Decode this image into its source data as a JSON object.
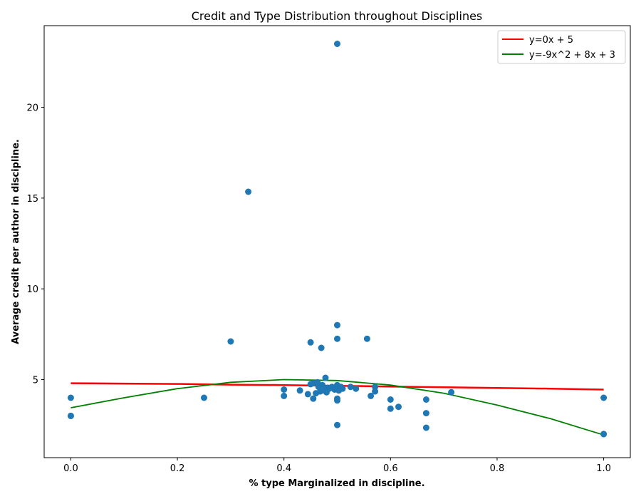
{
  "chart_data": {
    "type": "scatter",
    "title": "Credit and Type Distribution throughout Disciplines",
    "xlabel": "% type Marginalized in discipline.",
    "ylabel": "Average credit per author in discipline.",
    "xlim": [
      -0.05,
      1.05
    ],
    "ylim": [
      0.7,
      24.5
    ],
    "xticks": [
      0.0,
      0.2,
      0.4,
      0.6,
      0.8,
      1.0
    ],
    "xtick_labels": [
      "0.0",
      "0.2",
      "0.4",
      "0.6",
      "0.8",
      "1.0"
    ],
    "yticks": [
      5,
      10,
      15,
      20
    ],
    "ytick_labels": [
      "5",
      "10",
      "15",
      "20"
    ],
    "grid": false,
    "legend_position": "top-right",
    "colors": {
      "points": "#1f77b4",
      "fit_linear": "#ff0000",
      "fit_quadratic": "#008000"
    },
    "points": [
      [
        0.0,
        3.0
      ],
      [
        0.0,
        3.0
      ],
      [
        0.0,
        4.0
      ],
      [
        0.25,
        4.0
      ],
      [
        0.3,
        7.1
      ],
      [
        0.333,
        15.35
      ],
      [
        0.4,
        4.45
      ],
      [
        0.4,
        4.1
      ],
      [
        0.43,
        4.4
      ],
      [
        0.445,
        4.2
      ],
      [
        0.45,
        4.75
      ],
      [
        0.45,
        7.05
      ],
      [
        0.455,
        3.95
      ],
      [
        0.455,
        4.8
      ],
      [
        0.46,
        4.25
      ],
      [
        0.463,
        4.85
      ],
      [
        0.465,
        4.6
      ],
      [
        0.468,
        4.35
      ],
      [
        0.47,
        6.75
      ],
      [
        0.472,
        4.7
      ],
      [
        0.475,
        4.4
      ],
      [
        0.478,
        5.1
      ],
      [
        0.48,
        4.3
      ],
      [
        0.482,
        4.55
      ],
      [
        0.485,
        4.5
      ],
      [
        0.49,
        4.6
      ],
      [
        0.495,
        4.45
      ],
      [
        0.5,
        4.7
      ],
      [
        0.5,
        23.5
      ],
      [
        0.5,
        8.0
      ],
      [
        0.5,
        7.25
      ],
      [
        0.5,
        3.95
      ],
      [
        0.5,
        3.85
      ],
      [
        0.5,
        2.5
      ],
      [
        0.503,
        4.4
      ],
      [
        0.507,
        4.6
      ],
      [
        0.51,
        4.5
      ],
      [
        0.525,
        4.6
      ],
      [
        0.535,
        4.5
      ],
      [
        0.556,
        7.25
      ],
      [
        0.563,
        4.1
      ],
      [
        0.571,
        4.6
      ],
      [
        0.571,
        4.35
      ],
      [
        0.6,
        3.9
      ],
      [
        0.6,
        3.4
      ],
      [
        0.615,
        3.5
      ],
      [
        0.667,
        3.9
      ],
      [
        0.667,
        3.15
      ],
      [
        0.667,
        2.35
      ],
      [
        0.714,
        4.3
      ],
      [
        1.0,
        4.0
      ],
      [
        1.0,
        2.0
      ],
      [
        1.0,
        2.0
      ]
    ],
    "series": [
      {
        "name": "y=0x + 5",
        "type": "line",
        "fit": "linear",
        "x": [
          0.0,
          0.1,
          0.2,
          0.3,
          0.4,
          0.5,
          0.6,
          0.7,
          0.8,
          0.9,
          1.0
        ],
        "values": [
          4.8,
          4.78,
          4.76,
          4.72,
          4.7,
          4.66,
          4.62,
          4.58,
          4.54,
          4.5,
          4.45
        ]
      },
      {
        "name": "y=-9x^2 + 8x + 3",
        "type": "line",
        "fit": "quadratic",
        "x": [
          0.0,
          0.1,
          0.2,
          0.3,
          0.4,
          0.5,
          0.6,
          0.7,
          0.8,
          0.9,
          1.0
        ],
        "values": [
          3.45,
          4.0,
          4.5,
          4.85,
          5.0,
          4.95,
          4.7,
          4.25,
          3.6,
          2.85,
          1.95
        ]
      }
    ]
  }
}
